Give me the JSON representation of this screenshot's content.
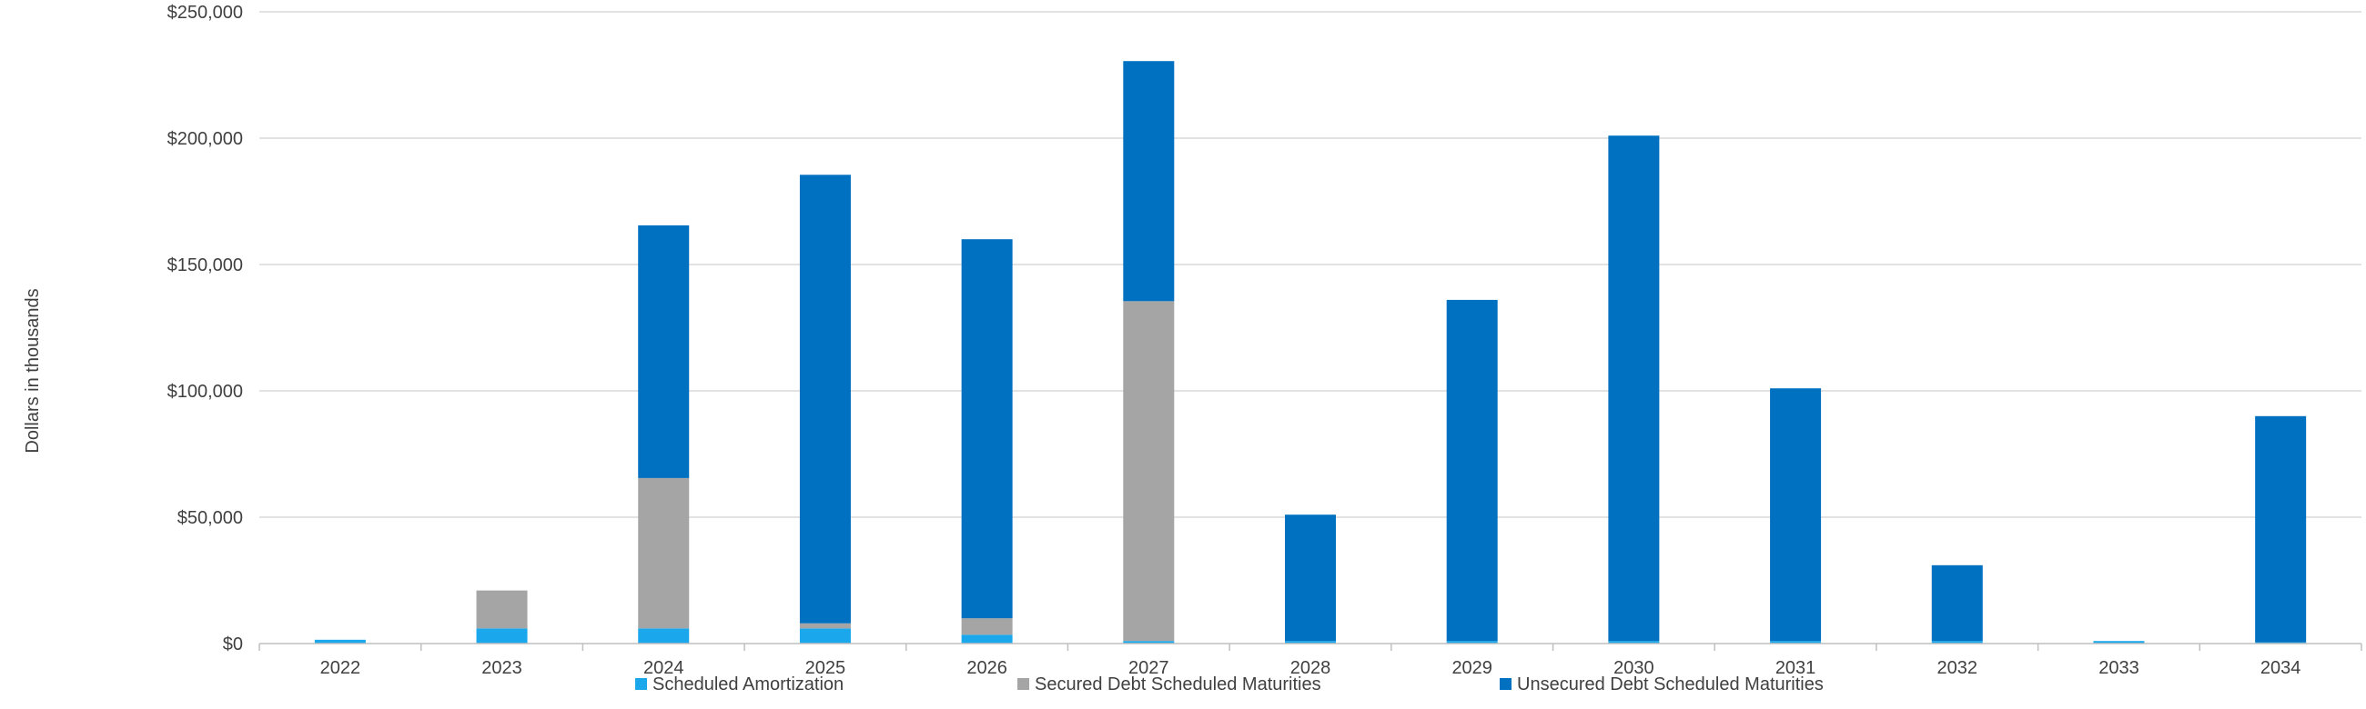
{
  "chart_data": {
    "type": "bar",
    "stacked": true,
    "title": "",
    "xlabel": "",
    "ylabel": "Dollars in thousands",
    "ylim": [
      0,
      250000
    ],
    "yticks": [
      "$0",
      "$50,000",
      "$100,000",
      "$150,000",
      "$200,000",
      "$250,000"
    ],
    "ytick_values": [
      0,
      50000,
      100000,
      150000,
      200000,
      250000
    ],
    "grid": true,
    "legend_position": "bottom",
    "categories": [
      "2022",
      "2023",
      "2024",
      "2025",
      "2026",
      "2027",
      "2028",
      "2029",
      "2030",
      "2031",
      "2032",
      "2033",
      "2034"
    ],
    "series": [
      {
        "name": "Scheduled Amortization",
        "color": "#1aa7ec",
        "values": [
          1500,
          6000,
          6000,
          6000,
          3500,
          1000,
          1000,
          1000,
          1000,
          1000,
          1000,
          1000,
          500
        ]
      },
      {
        "name": "Secured Debt Scheduled Maturities",
        "color": "#a5a5a5",
        "values": [
          0,
          15000,
          59500,
          2000,
          6500,
          134500,
          0,
          0,
          0,
          0,
          0,
          0,
          0
        ]
      },
      {
        "name": "Unsecured Debt Scheduled Maturities",
        "color": "#0070c0",
        "values": [
          0,
          0,
          100000,
          177500,
          150000,
          95000,
          50000,
          135000,
          200000,
          100000,
          30000,
          0,
          89500
        ]
      }
    ]
  }
}
